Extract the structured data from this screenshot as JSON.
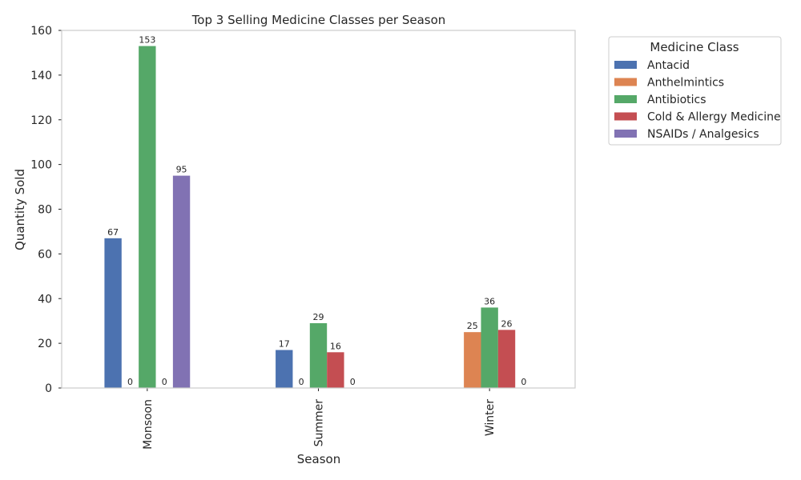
{
  "chart_data": {
    "type": "bar",
    "title": "Top 3 Selling Medicine Classes per Season",
    "xlabel": "Season",
    "ylabel": "Quantity Sold",
    "categories": [
      "Monsoon",
      "Summer",
      "Winter"
    ],
    "ylim": [
      0,
      160
    ],
    "yticks": [
      0,
      20,
      40,
      60,
      80,
      100,
      120,
      140,
      160
    ],
    "grid": false,
    "legend": {
      "title": "Medicine Class",
      "placement": "outside-top-right"
    },
    "series": [
      {
        "name": "Antacid",
        "color": "#4c72b0",
        "values": [
          67,
          17,
          null
        ],
        "labels": [
          "67",
          "17",
          ""
        ]
      },
      {
        "name": "Anthelmintics",
        "color": "#dd8452",
        "values": [
          null,
          null,
          25
        ],
        "labels": [
          "0",
          "0",
          "25"
        ]
      },
      {
        "name": "Antibiotics",
        "color": "#55a868",
        "values": [
          153,
          29,
          36
        ],
        "labels": [
          "153",
          "29",
          "36"
        ]
      },
      {
        "name": "Cold & Allergy Medicine",
        "color": "#c44e52",
        "values": [
          null,
          16,
          26
        ],
        "labels": [
          "0",
          "16",
          "26"
        ]
      },
      {
        "name": "NSAIDs / Analgesics",
        "color": "#8172b3",
        "values": [
          95,
          null,
          null
        ],
        "labels": [
          "95",
          "0",
          "0"
        ]
      }
    ]
  }
}
